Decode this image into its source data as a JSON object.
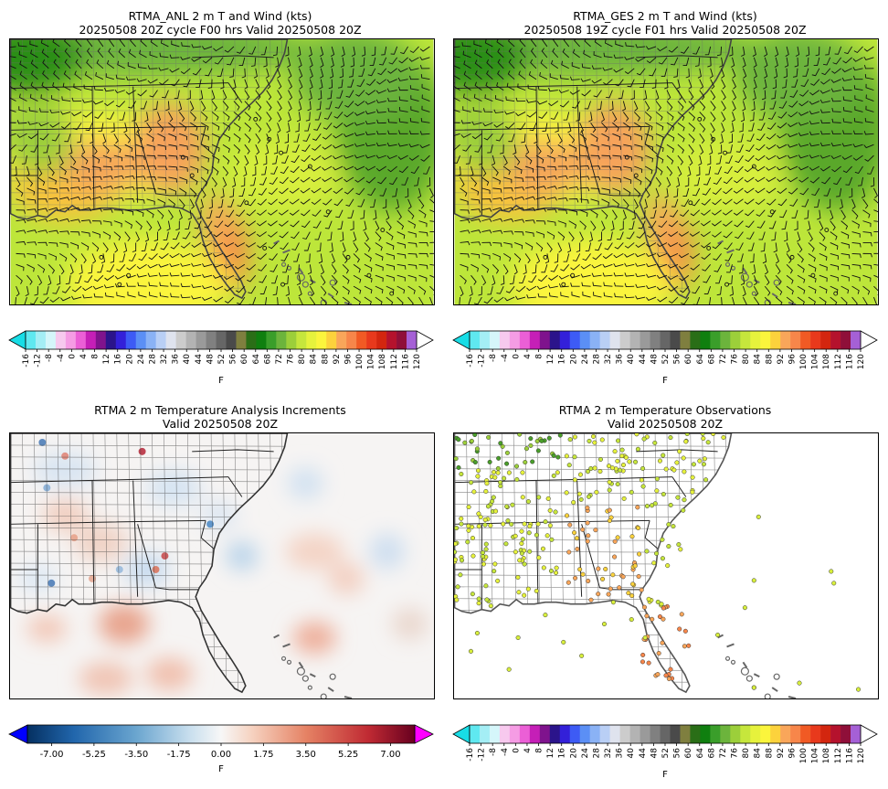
{
  "panels": [
    {
      "id": "anl",
      "title_line1": "RTMA_ANL 2 m T and Wind (kts)",
      "title_line2": "20250508 20Z cycle F00 hrs Valid 20250508 20Z",
      "field": "temperature_wind"
    },
    {
      "id": "ges",
      "title_line1": "RTMA_GES 2 m T and Wind (kts)",
      "title_line2": "20250508 19Z cycle F01 hrs Valid 20250508 20Z",
      "field": "temperature_wind"
    },
    {
      "id": "inc",
      "title_line1": "RTMA 2 m Temperature Analysis Increments",
      "title_line2": "Valid 20250508 20Z",
      "field": "increment"
    },
    {
      "id": "obs",
      "title_line1": "RTMA 2 m Temperature Observations",
      "title_line2": "Valid 20250508 20Z",
      "field": "observations"
    }
  ],
  "temp_colorbar": {
    "unit": "F",
    "ticks": [
      "-16",
      "-12",
      "-8",
      "-4",
      "0",
      "4",
      "8",
      "12",
      "16",
      "20",
      "24",
      "28",
      "32",
      "36",
      "40",
      "44",
      "48",
      "52",
      "56",
      "60",
      "64",
      "68",
      "72",
      "76",
      "80",
      "84",
      "88",
      "92",
      "96",
      "100",
      "104",
      "108",
      "112",
      "116",
      "120"
    ],
    "colors": [
      "#5fe8f0",
      "#a4eef5",
      "#d5f6fa",
      "#f7c9ee",
      "#f59ce4",
      "#eb5fd6",
      "#c51fb7",
      "#7f138d",
      "#2b148b",
      "#3320d9",
      "#3d5bf5",
      "#5b8ff5",
      "#8ab2f5",
      "#b9cff5",
      "#dfe3ee",
      "#cccccc",
      "#b3b3b3",
      "#9a9a9a",
      "#808080",
      "#666666",
      "#4a4a4a",
      "#7f7f3f",
      "#2a6e17",
      "#0f7f0f",
      "#3a9e2a",
      "#6cb43c",
      "#9ccf3a",
      "#c6e63c",
      "#e6f23c",
      "#fbf53c",
      "#fcd23c",
      "#f9a65a",
      "#f7864a",
      "#f15a24",
      "#e8391c",
      "#d3260f",
      "#b5122d",
      "#8f0f39",
      "#a560d6"
    ],
    "extend_min_color": "#18dde6",
    "extend_max_color": "#ffffff"
  },
  "inc_colorbar": {
    "unit": "F",
    "ticks": [
      "-7.00",
      "-5.25",
      "-3.50",
      "-1.75",
      "0.00",
      "1.75",
      "3.50",
      "5.25",
      "7.00"
    ],
    "min": -8,
    "max": 8,
    "extend_min_color": "#0000ff",
    "extend_max_color": "#ff00ff"
  }
}
